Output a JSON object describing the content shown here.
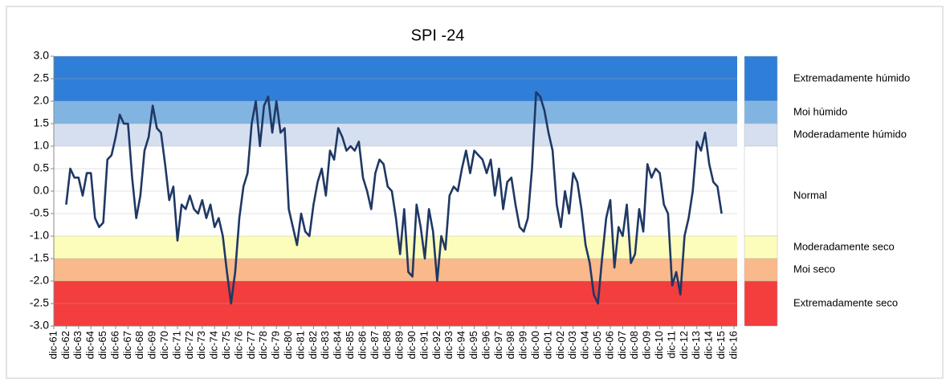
{
  "chart_data": {
    "type": "line",
    "title": "SPI -24",
    "categories": [
      "dic-61",
      null,
      null,
      "dic-62",
      null,
      null,
      "dic-63",
      null,
      null,
      "dic-64",
      null,
      null,
      "dic-65",
      null,
      null,
      "dic-66",
      null,
      null,
      "dic-67",
      null,
      null,
      "dic-68",
      null,
      null,
      "dic-69",
      null,
      null,
      "dic-70",
      null,
      null,
      "dic-71",
      null,
      null,
      "dic-72",
      null,
      null,
      "dic-73",
      null,
      null,
      "dic-74",
      null,
      null,
      "dic-75",
      null,
      null,
      "dic-76",
      null,
      null,
      "dic-77",
      null,
      null,
      "dic-78",
      null,
      null,
      "dic-79",
      null,
      null,
      "dic-80",
      null,
      null,
      "dic-81",
      null,
      null,
      "dic-82",
      null,
      null,
      "dic-83",
      null,
      null,
      "dic-84",
      null,
      null,
      "dic-85",
      null,
      null,
      "dic-86",
      null,
      null,
      "dic-87",
      null,
      null,
      "dic-88",
      null,
      null,
      "dic-89",
      null,
      null,
      "dic-90",
      null,
      null,
      "dic-91",
      null,
      null,
      "dic-92",
      null,
      null,
      "dic-93",
      null,
      null,
      "dic-94",
      null,
      null,
      "dic-95",
      null,
      null,
      "dic-96",
      null,
      null,
      "dic-97",
      null,
      null,
      "dic-98",
      null,
      null,
      "dic-99",
      null,
      null,
      "dic-00",
      null,
      null,
      "dic-01",
      null,
      null,
      "dic-02",
      null,
      null,
      "dic-03",
      null,
      null,
      "dic-04",
      null,
      null,
      "dic-05",
      null,
      null,
      "dic-06",
      null,
      null,
      "dic-07",
      null,
      null,
      "dic-08",
      null,
      null,
      "dic-09",
      null,
      null,
      "dic-10",
      null,
      null,
      "dic-11",
      null,
      null,
      "dic-12",
      null,
      null,
      "dic-13",
      null,
      null,
      "dic-14",
      null,
      null,
      "dic-15",
      null,
      null,
      "dic-16"
    ],
    "series": [
      {
        "color": "#1f3864",
        "values": [
          null,
          null,
          null,
          -0.3,
          0.5,
          0.3,
          0.3,
          -0.1,
          0.4,
          0.4,
          -0.6,
          -0.8,
          -0.7,
          0.7,
          0.8,
          1.2,
          1.7,
          1.5,
          1.5,
          0.3,
          -0.6,
          -0.1,
          0.9,
          1.2,
          1.9,
          1.4,
          1.3,
          0.6,
          -0.2,
          0.1,
          -1.1,
          -0.3,
          -0.4,
          -0.1,
          -0.4,
          -0.5,
          -0.2,
          -0.6,
          -0.3,
          -0.8,
          -0.6,
          -1.0,
          -1.8,
          -2.5,
          -1.8,
          -0.6,
          0.1,
          0.4,
          1.5,
          2.0,
          1.0,
          1.9,
          2.1,
          1.3,
          2.0,
          1.3,
          1.4,
          -0.4,
          -0.8,
          -1.2,
          -0.5,
          -0.9,
          -1.0,
          -0.3,
          0.2,
          0.5,
          -0.1,
          0.9,
          0.7,
          1.4,
          1.2,
          0.9,
          1.0,
          0.9,
          1.1,
          0.3,
          0.0,
          -0.4,
          0.4,
          0.7,
          0.6,
          0.1,
          0.0,
          -0.6,
          -1.4,
          -0.4,
          -1.8,
          -1.9,
          -0.3,
          -0.8,
          -1.5,
          -0.4,
          -0.9,
          -2.0,
          -1.0,
          -1.3,
          -0.1,
          0.1,
          0.0,
          0.5,
          0.9,
          0.4,
          0.9,
          0.8,
          0.7,
          0.4,
          0.7,
          -0.1,
          0.5,
          -0.4,
          0.2,
          0.3,
          -0.3,
          -0.8,
          -0.9,
          -0.6,
          0.5,
          2.2,
          2.1,
          1.8,
          1.3,
          0.9,
          -0.3,
          -0.8,
          0.0,
          -0.5,
          0.4,
          0.2,
          -0.4,
          -1.2,
          -1.6,
          -2.3,
          -2.5,
          -1.5,
          -0.6,
          -0.2,
          -1.7,
          -0.8,
          -1.0,
          -0.3,
          -1.6,
          -1.4,
          -0.4,
          -0.9,
          0.6,
          0.3,
          0.5,
          0.4,
          -0.3,
          -0.5,
          -2.1,
          -1.8,
          -2.3,
          -1.0,
          -0.6,
          0.0,
          1.1,
          0.9,
          1.3,
          0.6,
          0.2,
          0.1,
          -0.5,
          null,
          null,
          null
        ]
      }
    ],
    "ylim": [
      -3,
      3
    ],
    "yticks": [
      {
        "value": -3,
        "label": "-3.0"
      },
      {
        "value": -2.5,
        "label": "-2.5"
      },
      {
        "value": -2,
        "label": "-2.0"
      },
      {
        "value": -1.5,
        "label": "-1.5"
      },
      {
        "value": -1,
        "label": "-1.0"
      },
      {
        "value": -0.5,
        "label": "-0.5"
      },
      {
        "value": 0,
        "label": "0.0"
      },
      {
        "value": 0.5,
        "label": "0.5"
      },
      {
        "value": 1,
        "label": "1.0"
      },
      {
        "value": 1.5,
        "label": "1.5"
      },
      {
        "value": 2,
        "label": "2.0"
      },
      {
        "value": 2.5,
        "label": "2.5"
      },
      {
        "value": 3,
        "label": "3.0"
      }
    ],
    "grid": true,
    "bands": [
      {
        "name": "Extremadamente húmido",
        "from": 2,
        "to": 3,
        "color": "#2f7ed8"
      },
      {
        "name": "Moi húmido",
        "from": 1.5,
        "to": 2,
        "color": "#82b4e2"
      },
      {
        "name": "Moderadamente húmido",
        "from": 1,
        "to": 1.5,
        "color": "#d5dff0"
      },
      {
        "name": "Normal",
        "from": -1,
        "to": 1,
        "color": "#ffffff"
      },
      {
        "name": "Moderadamente seco",
        "from": -1.5,
        "to": -1,
        "color": "#fdfdbb"
      },
      {
        "name": "Moi seco",
        "from": -2,
        "to": -1.5,
        "color": "#f9b98a"
      },
      {
        "name": "Extremadamente seco",
        "from": -3,
        "to": -2,
        "color": "#f43d3d"
      }
    ]
  }
}
